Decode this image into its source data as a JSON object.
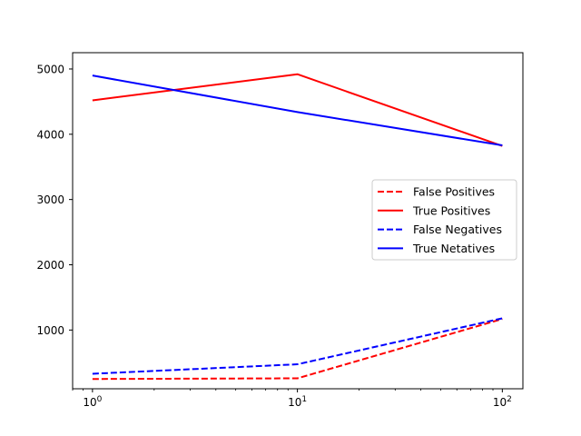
{
  "chart_data": {
    "type": "line",
    "title": "",
    "xlabel": "",
    "ylabel": "",
    "x": [
      1,
      10,
      100
    ],
    "xscale": "log",
    "xlim": [
      0.8,
      126
    ],
    "ylim": [
      100,
      5250
    ],
    "x_ticks": [
      {
        "value": 1,
        "base": "10",
        "exp": "0"
      },
      {
        "value": 10,
        "base": "10",
        "exp": "1"
      },
      {
        "value": 100,
        "base": "10",
        "exp": "2"
      }
    ],
    "y_ticks": [
      {
        "value": 1000,
        "label": "1000"
      },
      {
        "value": 2000,
        "label": "2000"
      },
      {
        "value": 3000,
        "label": "3000"
      },
      {
        "value": 4000,
        "label": "4000"
      },
      {
        "value": 5000,
        "label": "5000"
      }
    ],
    "grid": false,
    "legend_position": "center-right",
    "series": [
      {
        "name": "False Positives",
        "values": [
          250,
          260,
          1170
        ],
        "color": "#ff0000",
        "style": "dashed"
      },
      {
        "name": "True Positives",
        "values": [
          4520,
          4920,
          3820
        ],
        "color": "#ff0000",
        "style": "solid"
      },
      {
        "name": "False Negatives",
        "values": [
          330,
          475,
          1180
        ],
        "color": "#0000ff",
        "style": "dashed"
      },
      {
        "name": "True Netatives",
        "values": [
          4900,
          4340,
          3830
        ],
        "color": "#0000ff",
        "style": "solid"
      }
    ]
  }
}
